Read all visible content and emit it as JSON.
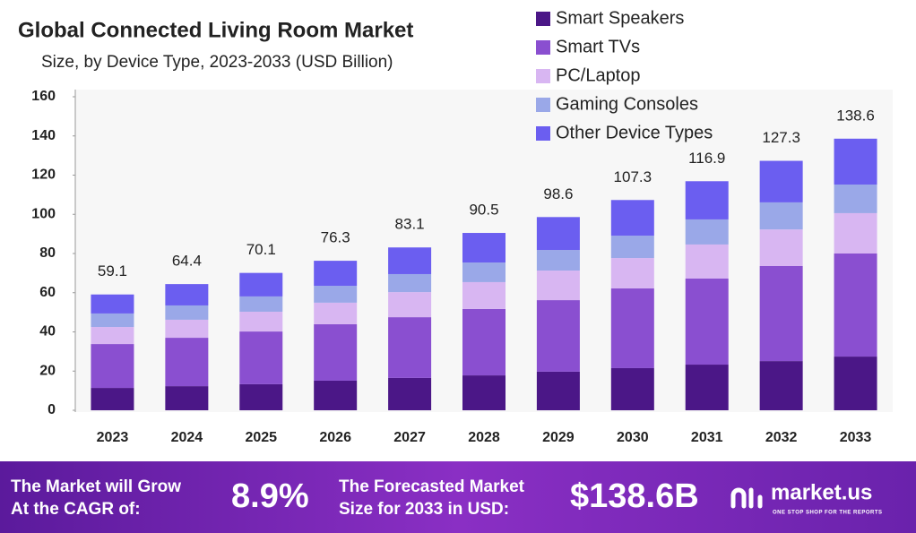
{
  "chart_data": {
    "type": "stacked_bar",
    "title": "Global Connected Living Room Market",
    "subtitle": "Size, by Device Type, 2023-2033 (USD Billion)",
    "categories": [
      "2023",
      "2024",
      "2025",
      "2026",
      "2027",
      "2028",
      "2029",
      "2030",
      "2031",
      "2032",
      "2033"
    ],
    "series": [
      {
        "name": "Smart Speakers",
        "color": "#4b1787",
        "values": [
          11.4,
          12.3,
          13.3,
          15.1,
          16.5,
          17.8,
          19.7,
          21.5,
          23.3,
          25.1,
          27.4
        ]
      },
      {
        "name": "Smart TVs",
        "color": "#8a4fd0",
        "values": [
          22.4,
          24.7,
          26.9,
          28.8,
          31.0,
          33.9,
          36.5,
          40.7,
          43.9,
          48.5,
          52.6
        ]
      },
      {
        "name": "PC/Laptop",
        "color": "#d8b6f2",
        "values": [
          8.7,
          9.2,
          10.1,
          11.0,
          12.8,
          13.7,
          15.1,
          15.5,
          17.4,
          18.7,
          20.6
        ]
      },
      {
        "name": "Gaming Consoles",
        "color": "#9aa8e8",
        "values": [
          6.9,
          7.3,
          7.8,
          8.6,
          9.2,
          10.0,
          10.5,
          11.4,
          12.8,
          13.8,
          14.6
        ]
      },
      {
        "name": "Other Device Types",
        "color": "#6b5ef0",
        "values": [
          9.7,
          10.9,
          12.0,
          12.8,
          13.6,
          15.1,
          16.8,
          18.2,
          19.5,
          21.2,
          23.4
        ]
      }
    ],
    "totals": [
      59.1,
      64.4,
      70.1,
      76.3,
      83.1,
      90.5,
      98.6,
      107.3,
      116.9,
      127.3,
      138.6
    ],
    "ylim": [
      0,
      160
    ],
    "yticks": [
      0,
      20,
      40,
      60,
      80,
      100,
      120,
      140,
      160
    ],
    "grid": false
  },
  "banner": {
    "cagr_text": [
      "The Market will Grow",
      "At the CAGR of:"
    ],
    "cagr_value": "8.9%",
    "forecast_text": [
      "The Forecasted Market",
      "Size for 2033 in USD:"
    ],
    "forecast_value": "$138.6B",
    "brand": "market.us",
    "tagline": "ONE STOP SHOP FOR THE REPORTS"
  }
}
